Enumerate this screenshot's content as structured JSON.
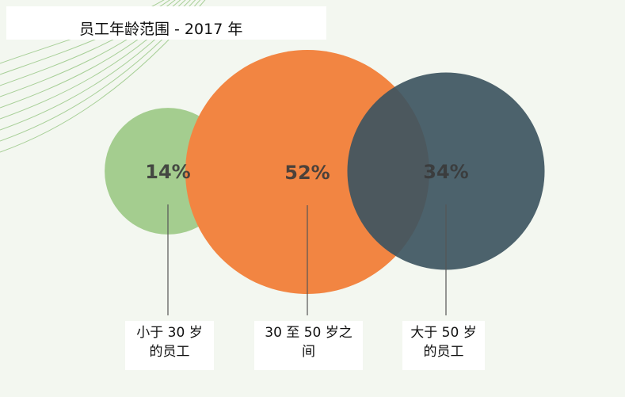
{
  "title": "员工年龄范围 - 2017 年",
  "colors": {
    "background": "#f3f7f0",
    "contour_lines": "#8ec27a",
    "small": "#a4cd8f",
    "medium": "#f28542",
    "large": "#3e5561",
    "percent_text": "#3a3a3a",
    "connector": "#555555"
  },
  "chart_data": {
    "type": "bubble",
    "title": "员工年龄范围 - 2017 年",
    "categories": [
      "小于 30 岁的员工",
      "30 至 50 岁之间",
      "大于 50 岁的员工"
    ],
    "values": [
      14,
      52,
      34
    ],
    "value_labels": [
      "14%",
      "52%",
      "34%"
    ],
    "label_lines": [
      [
        "小于 30 岁",
        "的员工"
      ],
      [
        "30 至 50 岁之",
        "间"
      ],
      [
        "大于 50 岁",
        "的员工"
      ]
    ]
  }
}
